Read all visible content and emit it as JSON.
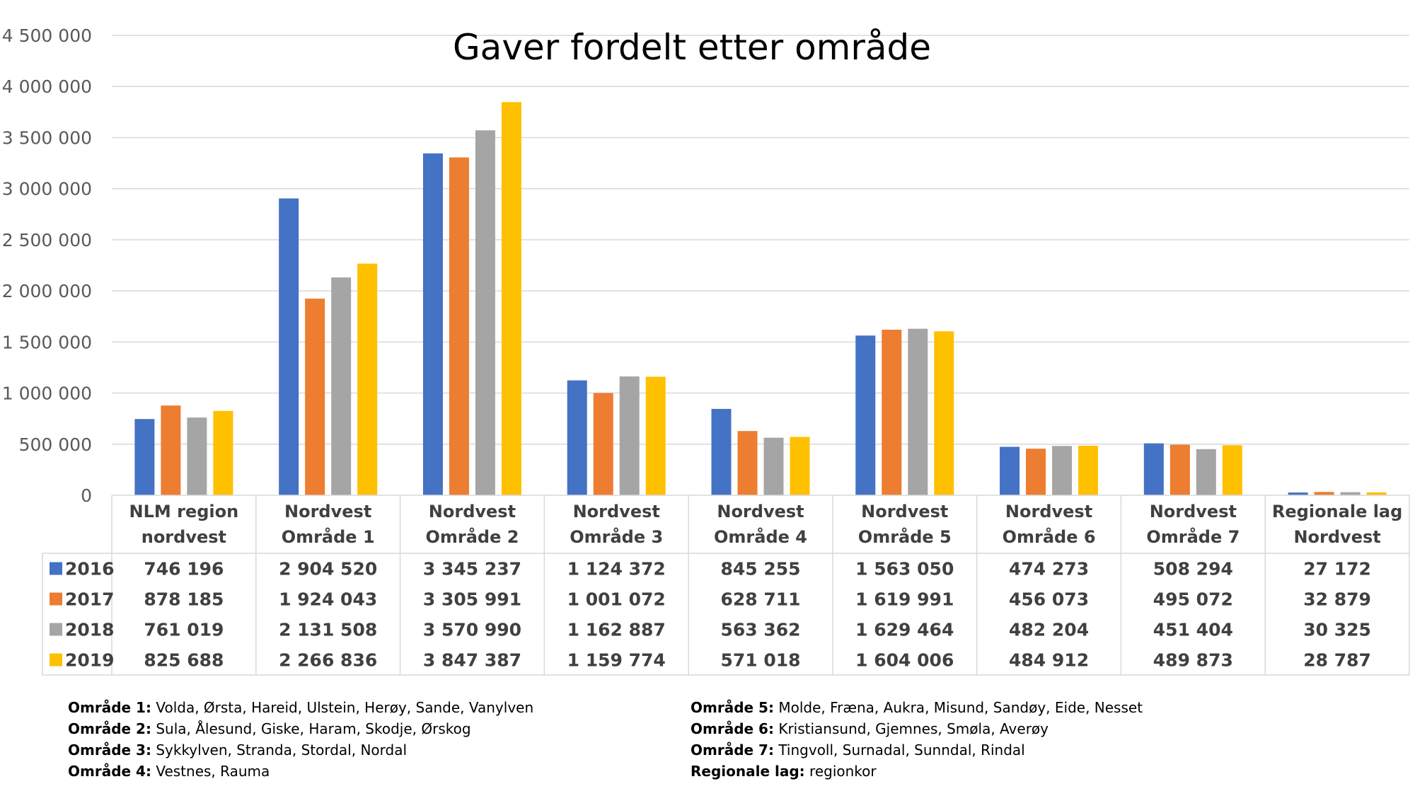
{
  "chart_data": {
    "type": "bar",
    "title": "Gaver fordelt etter område",
    "categories": [
      [
        "NLM region",
        "nordvest"
      ],
      [
        "Nordvest",
        "Område 1"
      ],
      [
        "Nordvest",
        "Område 2"
      ],
      [
        "Nordvest",
        "Område 3"
      ],
      [
        "Nordvest",
        "Område 4"
      ],
      [
        "Nordvest",
        "Område 5"
      ],
      [
        "Nordvest",
        "Område 6"
      ],
      [
        "Nordvest",
        "Område 7"
      ],
      [
        "Regionale lag",
        "Nordvest"
      ]
    ],
    "series": [
      {
        "name": "2016",
        "color": "#4472C4",
        "values": [
          746196,
          2904520,
          3345237,
          1124372,
          845255,
          1563050,
          474273,
          508294,
          27172
        ],
        "labels": [
          "746 196",
          "2 904 520",
          "3 345 237",
          "1 124 372",
          "845 255",
          "1 563 050",
          "474 273",
          "508 294",
          "27 172"
        ]
      },
      {
        "name": "2017",
        "color": "#ED7D31",
        "values": [
          878185,
          1924043,
          3305991,
          1001072,
          628711,
          1619991,
          456073,
          495072,
          32879
        ],
        "labels": [
          "878 185",
          "1 924 043",
          "3 305 991",
          "1 001 072",
          "628 711",
          "1 619 991",
          "456 073",
          "495 072",
          "32 879"
        ]
      },
      {
        "name": "2018",
        "color": "#A5A5A5",
        "values": [
          761019,
          2131508,
          3570990,
          1162887,
          563362,
          1629464,
          482204,
          451404,
          30325
        ],
        "labels": [
          "761 019",
          "2 131 508",
          "3 570 990",
          "1 162 887",
          "563 362",
          "1 629 464",
          "482 204",
          "451 404",
          "30 325"
        ]
      },
      {
        "name": "2019",
        "color": "#FFC000",
        "values": [
          825688,
          2266836,
          3847387,
          1159774,
          571018,
          1604006,
          484912,
          489873,
          28787
        ],
        "labels": [
          "825 688",
          "2 266 836",
          "3 847 387",
          "1 159 774",
          "571 018",
          "1 604 006",
          "484 912",
          "489 873",
          "28 787"
        ]
      }
    ],
    "ylim": [
      0,
      4500000
    ],
    "yticks": [
      0,
      500000,
      1000000,
      1500000,
      2000000,
      2500000,
      3000000,
      3500000,
      4000000,
      4500000
    ],
    "ytick_labels": [
      "0",
      "500 000",
      "1 000 000",
      "1 500 000",
      "2 000 000",
      "2 500 000",
      "3 000 000",
      "3 500 000",
      "4 000 000",
      "4 500 000"
    ],
    "grid": true,
    "legend": "data-table"
  },
  "notes": [
    {
      "label": "Område 1:",
      "text": " Volda, Ørsta, Hareid, Ulstein, Herøy, Sande, Vanylven"
    },
    {
      "label": "Område 2:",
      "text": " Sula, Ålesund, Giske, Haram, Skodje, Ørskog"
    },
    {
      "label": "Område 3:",
      "text": " Sykkylven, Stranda, Stordal, Nordal"
    },
    {
      "label": "Område 4:",
      "text": " Vestnes, Rauma"
    },
    {
      "label": "Område 5:",
      "text": " Molde, Fræna, Aukra, Misund, Sandøy, Eide, Nesset"
    },
    {
      "label": "Område 6:",
      "text": " Kristiansund, Gjemnes, Smøla, Averøy"
    },
    {
      "label": "Område 7:",
      "text": " Tingvoll, Surnadal, Sunndal, Rindal"
    },
    {
      "label": "Regionale lag:",
      "text": " regionkor"
    }
  ]
}
